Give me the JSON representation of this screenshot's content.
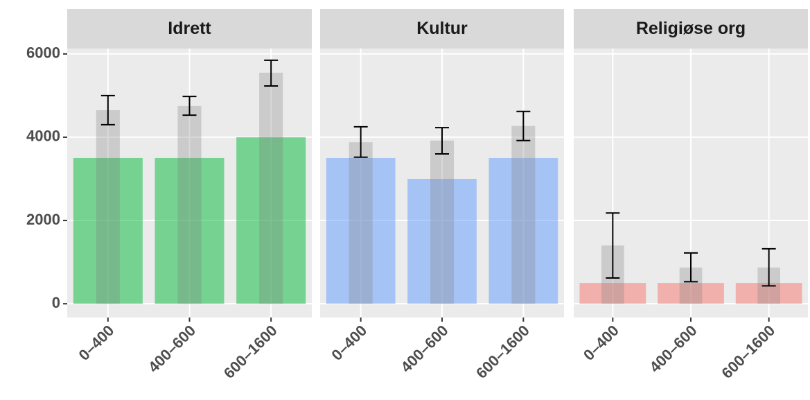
{
  "chart_data": [
    {
      "type": "bar",
      "title": "Idrett",
      "categories": [
        "0–400",
        "400–600",
        "600–1600"
      ],
      "series": [
        {
          "color": "#00BA38",
          "values": [
            3500,
            3500,
            4000
          ]
        },
        {
          "color": "#808080",
          "values": [
            4650,
            4750,
            5550
          ],
          "error_low": [
            4300,
            4530,
            5230
          ],
          "error_high": [
            5000,
            4980,
            5850
          ]
        }
      ],
      "ylim": [
        -330,
        6130
      ],
      "yticks": [
        0,
        2000,
        4000,
        6000
      ],
      "grid": true
    },
    {
      "type": "bar",
      "title": "Kultur",
      "categories": [
        "0–400",
        "400–600",
        "600–1600"
      ],
      "series": [
        {
          "color": "#619CFF",
          "values": [
            3500,
            3000,
            3500
          ]
        },
        {
          "color": "#808080",
          "values": [
            3880,
            3920,
            4270
          ],
          "error_low": [
            3520,
            3600,
            3920
          ],
          "error_high": [
            4250,
            4230,
            4620
          ]
        }
      ],
      "ylim": [
        -330,
        6130
      ],
      "grid": true
    },
    {
      "type": "bar",
      "title": "Religiøse org",
      "categories": [
        "0–400",
        "400–600",
        "600–1600"
      ],
      "series": [
        {
          "color": "#F8766D",
          "values": [
            500,
            500,
            500
          ]
        },
        {
          "color": "#808080",
          "values": [
            1400,
            870,
            870
          ],
          "error_low": [
            620,
            530,
            430
          ],
          "error_high": [
            2180,
            1220,
            1320
          ]
        }
      ],
      "ylim": [
        -330,
        6130
      ],
      "grid": true
    }
  ]
}
